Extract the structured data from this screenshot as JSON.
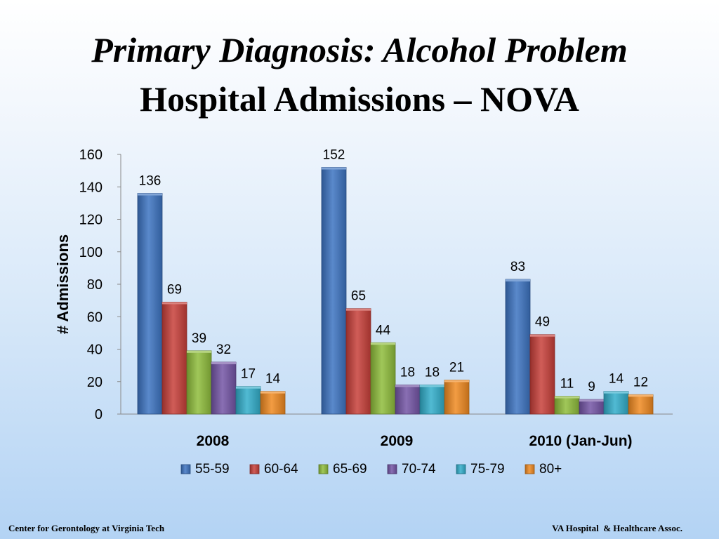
{
  "slide": {
    "title_line1": "Primary Diagnosis: Alcohol Problem",
    "title_line2": "Hospital Admissions – NOVA"
  },
  "footer": {
    "left": "Center for Gerontology at Virginia Tech",
    "right": "VA Hospital  & Healthcare Assoc."
  },
  "chart_data": {
    "type": "bar",
    "title": "",
    "xlabel": "",
    "ylabel": "# Admissions",
    "ylim": [
      0,
      160
    ],
    "yticks": [
      0,
      20,
      40,
      60,
      80,
      100,
      120,
      140,
      160
    ],
    "grid": false,
    "legend_position": "bottom",
    "categories": [
      "2008",
      "2009",
      "2010 (Jan-Jun)"
    ],
    "series": [
      {
        "name": "55-59",
        "color": "#3d74c2",
        "values": [
          136,
          152,
          83
        ]
      },
      {
        "name": "60-64",
        "color": "#c8403a",
        "values": [
          69,
          65,
          49
        ]
      },
      {
        "name": "65-69",
        "color": "#8fbd3c",
        "values": [
          39,
          44,
          11
        ]
      },
      {
        "name": "70-74",
        "color": "#7455a6",
        "values": [
          32,
          18,
          9
        ]
      },
      {
        "name": "75-79",
        "color": "#32aecb",
        "values": [
          17,
          18,
          14
        ]
      },
      {
        "name": "80+",
        "color": "#f08a22",
        "values": [
          14,
          21,
          12
        ]
      }
    ]
  }
}
